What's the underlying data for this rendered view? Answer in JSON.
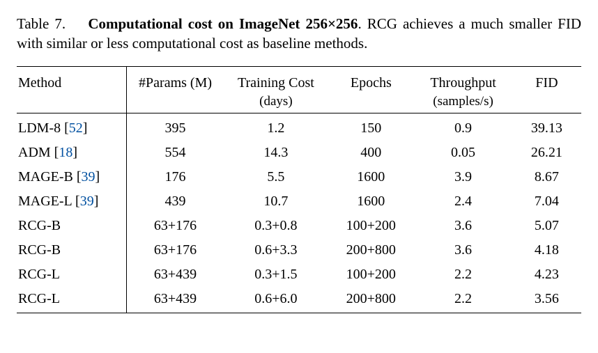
{
  "caption": {
    "label": "Table 7.",
    "title_bold": "Computational cost on ImageNet 256×256",
    "rest": ". RCG achieves a much smaller FID with similar or less computational cost as baseline methods."
  },
  "table": {
    "columns": {
      "method": "Method",
      "params": "#Params (M)",
      "training": "Training Cost",
      "training_sub": "(days)",
      "epochs": "Epochs",
      "throughput": "Throughput",
      "throughput_sub": "(samples/s)",
      "fid": "FID"
    },
    "rows": [
      {
        "method": "LDM-8",
        "cite": "52",
        "params": "395",
        "training": "1.2",
        "epochs": "150",
        "throughput": "0.9",
        "fid": "39.13"
      },
      {
        "method": "ADM",
        "cite": "18",
        "params": "554",
        "training": "14.3",
        "epochs": "400",
        "throughput": "0.05",
        "fid": "26.21"
      },
      {
        "method": "MAGE-B",
        "cite": "39",
        "params": "176",
        "training": "5.5",
        "epochs": "1600",
        "throughput": "3.9",
        "fid": "8.67"
      },
      {
        "method": "MAGE-L",
        "cite": "39",
        "params": "439",
        "training": "10.7",
        "epochs": "1600",
        "throughput": "2.4",
        "fid": "7.04"
      },
      {
        "method": "RCG-B",
        "cite": "",
        "params": "63+176",
        "training": "0.3+0.8",
        "epochs": "100+200",
        "throughput": "3.6",
        "fid": "5.07"
      },
      {
        "method": "RCG-B",
        "cite": "",
        "params": "63+176",
        "training": "0.6+3.3",
        "epochs": "200+800",
        "throughput": "3.6",
        "fid": "4.18"
      },
      {
        "method": "RCG-L",
        "cite": "",
        "params": "63+439",
        "training": "0.3+1.5",
        "epochs": "100+200",
        "throughput": "2.2",
        "fid": "4.23"
      },
      {
        "method": "RCG-L",
        "cite": "",
        "params": "63+439",
        "training": "0.6+6.0",
        "epochs": "200+800",
        "throughput": "2.2",
        "fid": "3.56"
      }
    ],
    "col_widths_pct": [
      19,
      17,
      18,
      15,
      17,
      12
    ],
    "cite_color": "#0050a0",
    "rule_color": "#000000",
    "background_color": "#ffffff",
    "font_family": "Times New Roman"
  }
}
